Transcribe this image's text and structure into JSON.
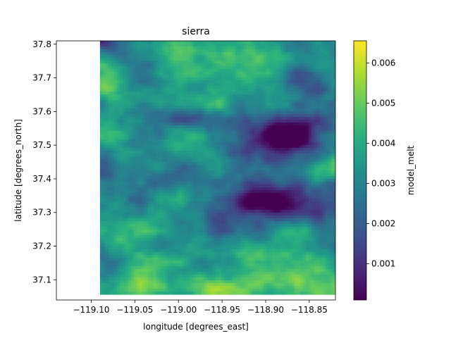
{
  "chart_data": {
    "type": "heatmap",
    "title": "sierra",
    "xlabel": "longitude [degrees_east]",
    "ylabel": "latitude [degrees_north]",
    "xlim": [
      -119.14,
      -118.82
    ],
    "ylim": [
      37.04,
      37.81
    ],
    "data_extent_x": [
      -119.09,
      -118.82
    ],
    "data_extent_y": [
      37.063,
      37.81
    ],
    "xticks": [
      -119.1,
      -119.05,
      -119.0,
      -118.95,
      -118.9,
      -118.85
    ],
    "xtick_labels": [
      "−119.10",
      "−119.05",
      "−119.00",
      "−118.95",
      "−118.90",
      "−118.85"
    ],
    "yticks": [
      37.1,
      37.2,
      37.3,
      37.4,
      37.5,
      37.6,
      37.7,
      37.8
    ],
    "ytick_labels": [
      "37.1",
      "37.2",
      "37.3",
      "37.4",
      "37.5",
      "37.6",
      "37.7",
      "37.8"
    ],
    "colorbar": {
      "label": "model_melt",
      "colormap": "viridis",
      "vmin": 0.0001,
      "vmax": 0.00655,
      "ticks": [
        0.001,
        0.002,
        0.003,
        0.004,
        0.005,
        0.006
      ],
      "tick_labels": [
        "0.001",
        "0.002",
        "0.003",
        "0.004",
        "0.005",
        "0.006"
      ]
    },
    "grid": false
  }
}
